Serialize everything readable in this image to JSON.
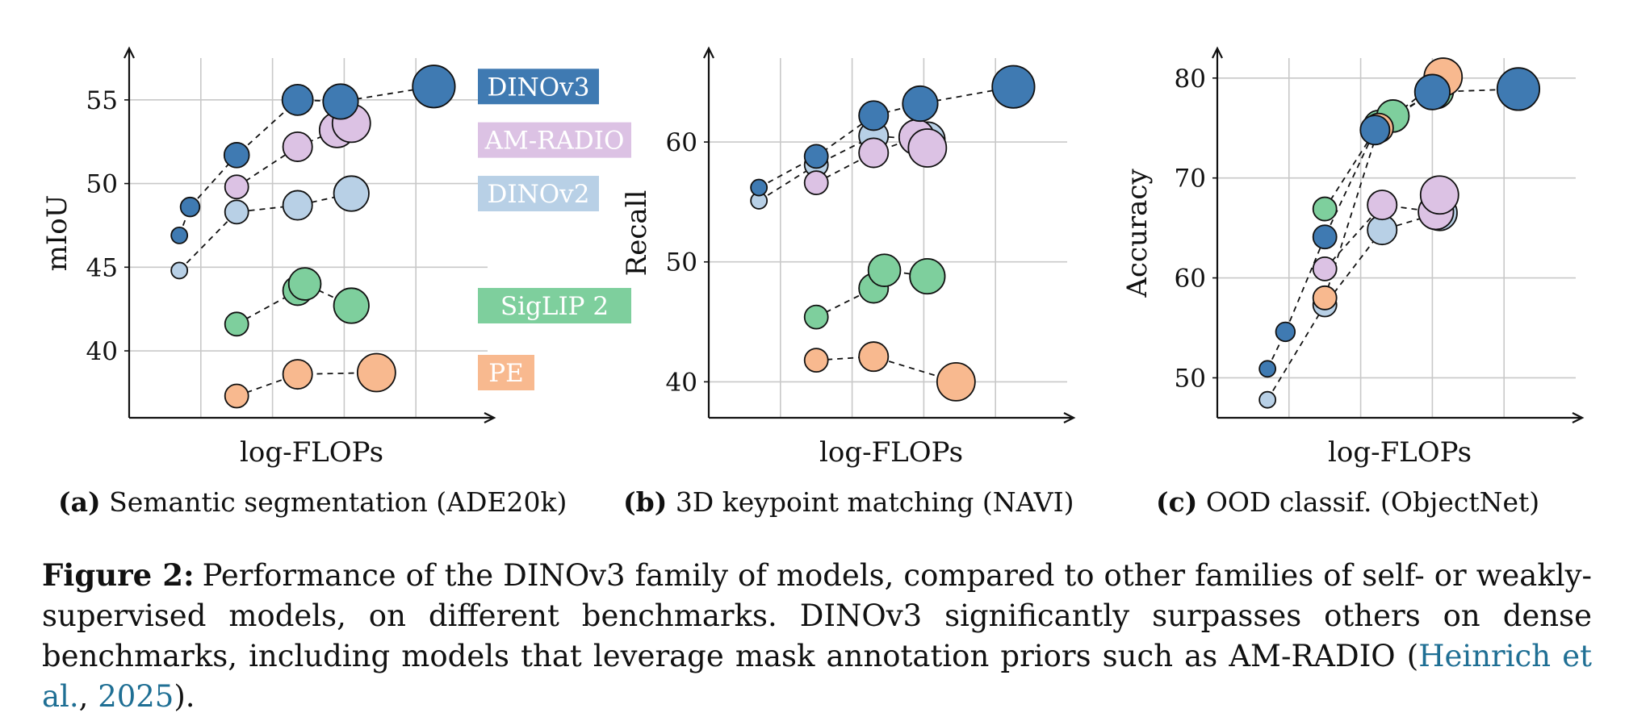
{
  "colors": {
    "DINOv3": "#3f7ab2",
    "AM-RADIO": "#dcc2e4",
    "DINOv2": "#b8d0e6",
    "SigLIP 2": "#7ecf9d",
    "PE": "#f8b98f",
    "grid": "#c8c8c8",
    "axis": "#111111",
    "link": "#1f6f94"
  },
  "chart_data": [
    {
      "id": "a",
      "type": "scatter",
      "subcaption_label": "(a)",
      "subcaption_text": "Semantic segmentation (ADE20k)",
      "xlabel": "log-FLOPs",
      "ylabel": "mIoU",
      "xlim": [
        0,
        10
      ],
      "ylim": [
        36,
        57.5
      ],
      "yticks": [
        40,
        45,
        50,
        55
      ],
      "xgrid": [
        2,
        4,
        6,
        8
      ],
      "legend_placement": "inline-right",
      "series": [
        {
          "name": "DINOv3",
          "label": "DINOv3",
          "x": [
            1.4,
            1.7,
            3.0,
            4.7,
            5.9,
            8.5
          ],
          "y": [
            46.9,
            48.6,
            51.7,
            55.0,
            54.9,
            55.8
          ],
          "size": [
            1,
            1.2,
            1.6,
            2.0,
            2.3,
            2.8
          ],
          "label_y": 55.8
        },
        {
          "name": "AM-RADIO",
          "label": "AM-RADIO",
          "x": [
            3.0,
            4.7,
            5.8,
            6.2
          ],
          "y": [
            49.8,
            52.2,
            53.2,
            53.6
          ],
          "size": [
            1.5,
            1.9,
            2.3,
            2.5
          ],
          "label_y": 52.6
        },
        {
          "name": "DINOv2",
          "label": "DINOv2",
          "x": [
            1.4,
            3.0,
            4.7,
            6.2
          ],
          "y": [
            44.8,
            48.3,
            48.7,
            49.4
          ],
          "size": [
            1,
            1.5,
            1.9,
            2.3
          ],
          "label_y": 49.4
        },
        {
          "name": "SigLIP 2",
          "label": "SigLIP 2",
          "x": [
            3.0,
            4.7,
            4.9,
            6.2
          ],
          "y": [
            41.6,
            43.6,
            44.0,
            42.7
          ],
          "size": [
            1.5,
            1.9,
            2.1,
            2.3
          ],
          "label_y": 42.7
        },
        {
          "name": "PE",
          "label": "PE",
          "x": [
            3.0,
            4.7,
            6.9
          ],
          "y": [
            37.3,
            38.6,
            38.7
          ],
          "size": [
            1.5,
            1.9,
            2.5
          ],
          "label_y": 38.7
        }
      ]
    },
    {
      "id": "b",
      "type": "scatter",
      "subcaption_label": "(b)",
      "subcaption_text": "3D keypoint matching (NAVI)",
      "xlabel": "log-FLOPs",
      "ylabel": "Recall",
      "xlim": [
        0,
        10
      ],
      "ylim": [
        37,
        67
      ],
      "yticks": [
        40,
        50,
        60
      ],
      "xgrid": [
        2,
        4,
        6,
        8
      ],
      "legend_placement": "none",
      "series": [
        {
          "name": "DINOv3",
          "x": [
            1.4,
            3.0,
            4.6,
            5.9,
            8.5
          ],
          "y": [
            56.2,
            58.8,
            62.2,
            63.2,
            64.6
          ],
          "size": [
            1,
            1.5,
            1.9,
            2.3,
            2.8
          ]
        },
        {
          "name": "AM-RADIO",
          "x": [
            3.0,
            4.6,
            5.8,
            6.1
          ],
          "y": [
            56.6,
            59.1,
            60.4,
            59.5
          ],
          "size": [
            1.5,
            1.9,
            2.3,
            2.5
          ]
        },
        {
          "name": "DINOv2",
          "x": [
            1.4,
            3.0,
            4.6,
            6.1
          ],
          "y": [
            55.1,
            58.1,
            60.5,
            60.2
          ],
          "size": [
            1,
            1.5,
            1.9,
            2.3
          ]
        },
        {
          "name": "SigLIP 2",
          "x": [
            3.0,
            4.6,
            4.9,
            6.1
          ],
          "y": [
            45.4,
            47.8,
            49.3,
            48.8
          ],
          "size": [
            1.5,
            1.9,
            2.1,
            2.3
          ]
        },
        {
          "name": "PE",
          "x": [
            3.0,
            4.6,
            6.9
          ],
          "y": [
            41.8,
            42.1,
            40.0
          ],
          "size": [
            1.5,
            1.9,
            2.5
          ]
        }
      ]
    },
    {
      "id": "c",
      "type": "scatter",
      "subcaption_label": "(c)",
      "subcaption_text": "OOD classif. (ObjectNet)",
      "xlabel": "log-FLOPs",
      "ylabel": "Accuracy",
      "xlim": [
        0,
        10
      ],
      "ylim": [
        46,
        82
      ],
      "yticks": [
        50,
        60,
        70,
        80
      ],
      "xgrid": [
        2,
        4,
        6,
        8
      ],
      "legend_placement": "none",
      "series": [
        {
          "name": "DINOv3",
          "x": [
            1.4,
            1.9,
            3.0,
            4.4,
            6.0,
            8.4
          ],
          "y": [
            50.9,
            54.6,
            64.1,
            74.8,
            78.6,
            78.9
          ],
          "size": [
            1,
            1.2,
            1.5,
            1.9,
            2.3,
            2.8
          ]
        },
        {
          "name": "AM-RADIO",
          "x": [
            3.0,
            4.6,
            6.1,
            6.2
          ],
          "y": [
            60.9,
            67.3,
            66.6,
            68.3
          ],
          "size": [
            1.5,
            1.9,
            2.3,
            2.5
          ]
        },
        {
          "name": "DINOv2",
          "x": [
            1.4,
            3.0,
            4.6,
            6.2
          ],
          "y": [
            47.8,
            57.3,
            64.8,
            66.5
          ],
          "size": [
            1,
            1.5,
            1.9,
            2.3
          ]
        },
        {
          "name": "SigLIP 2",
          "x": [
            3.0,
            4.5,
            4.9,
            6.1
          ],
          "y": [
            66.9,
            75.3,
            76.2,
            78.7
          ],
          "size": [
            1.5,
            1.9,
            2.1,
            2.3
          ]
        },
        {
          "name": "PE",
          "x": [
            3.0,
            4.5,
            6.3
          ],
          "y": [
            58.0,
            75.0,
            80.1
          ],
          "size": [
            1.5,
            1.9,
            2.5
          ]
        }
      ]
    }
  ],
  "caption": {
    "label": "Figure 2:",
    "text_before": "Performance of the DINOv3 family of models, compared to other families of self- or weakly-supervised models, on different benchmarks. DINOv3 significantly surpasses others on dense benchmarks, including models that leverage mask annotation priors such as AM-RADIO (",
    "cite_authors": "Heinrich et al.",
    "cite_sep": ", ",
    "cite_year": "2025",
    "text_after": ")."
  }
}
